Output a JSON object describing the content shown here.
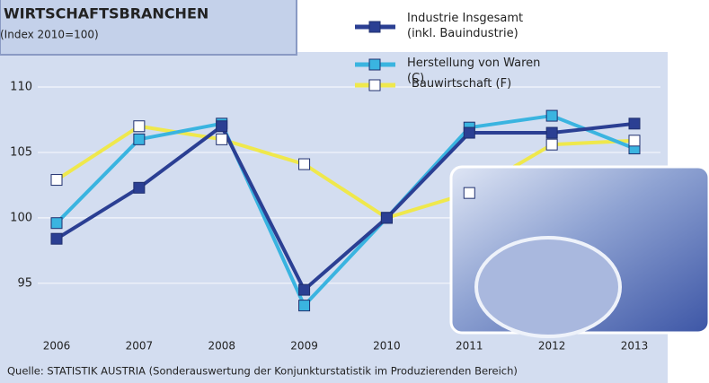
{
  "chart_data": {
    "type": "line",
    "title": "WIRTSCHAFTSBRANCHEN",
    "subtitle": "(Index 2010=100)",
    "source": "Quelle: STATISTIK AUSTRIA (Sonderauswertung der Konjunkturstatistik im Produzierenden Bereich)",
    "categories": [
      "2006",
      "2007",
      "2008",
      "2009",
      "2010",
      "2011",
      "2012",
      "2013"
    ],
    "series": [
      {
        "name": "Industrie Insgesamt (inkl. Bauindustrie)",
        "color": "#2b3f93",
        "marker_color": "#2b3f93",
        "values": [
          98.4,
          102.3,
          107,
          94.5,
          100,
          106.5,
          106.5,
          107.2
        ]
      },
      {
        "name": "Herstellung von Waren (C)",
        "color": "#3ab4e0",
        "marker_color": "#3ab4e0",
        "values": [
          99.6,
          106,
          107.2,
          93.3,
          100,
          106.9,
          107.8,
          105.3
        ]
      },
      {
        "name": "Bauwirtschaft (F)",
        "color": "#efe84c",
        "marker_color": "#ffffff",
        "values": [
          102.9,
          107,
          106,
          104.1,
          100,
          101.9,
          105.6,
          105.9
        ]
      }
    ],
    "ylim": [
      93,
      112.5
    ],
    "yticks": [
      95,
      100,
      105,
      110
    ],
    "grid": true
  }
}
